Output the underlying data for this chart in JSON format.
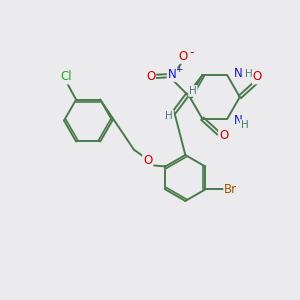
{
  "background_color": "#ebebed",
  "bond_color": "#4a7a4a",
  "atom_colors": {
    "N": "#1414cc",
    "O": "#cc0000",
    "Br": "#a05000",
    "Cl": "#22aa22",
    "H": "#4a7a7a"
  },
  "figsize": [
    3.0,
    3.0
  ],
  "dpi": 100
}
